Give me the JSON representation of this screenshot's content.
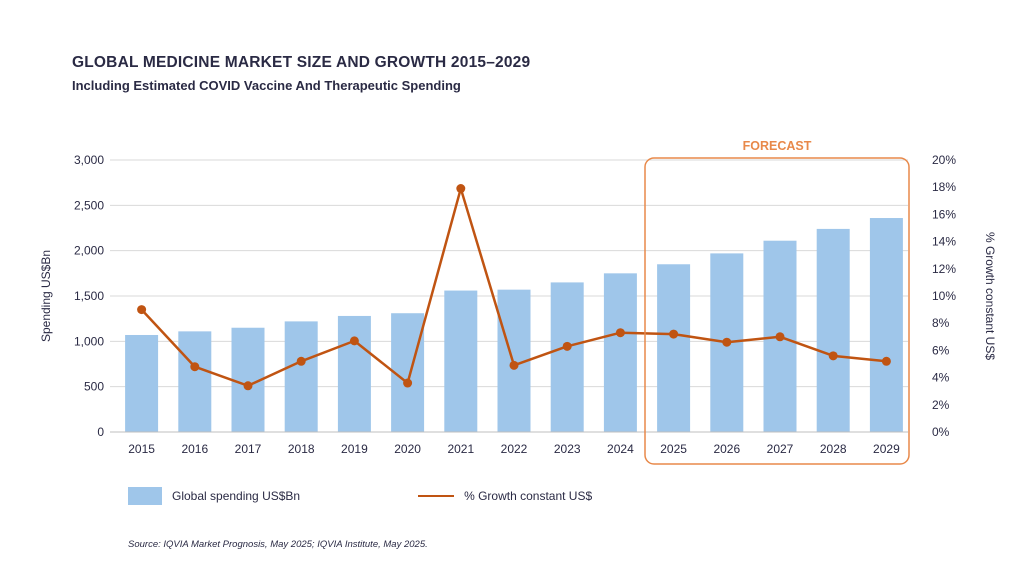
{
  "chart_data": {
    "type": "bar",
    "title": "GLOBAL MEDICINE MARKET SIZE AND GROWTH 2015–2029",
    "subtitle": "Including Estimated COVID Vaccine And Therapeutic Spending",
    "categories": [
      "2015",
      "2016",
      "2017",
      "2018",
      "2019",
      "2020",
      "2021",
      "2022",
      "2023",
      "2024",
      "2025",
      "2026",
      "2027",
      "2028",
      "2029"
    ],
    "series": [
      {
        "name": "Global spending US$Bn",
        "type": "bar",
        "axis": "left",
        "values": [
          1070,
          1110,
          1150,
          1220,
          1280,
          1310,
          1560,
          1570,
          1650,
          1750,
          1850,
          1970,
          2110,
          2240,
          2360
        ]
      },
      {
        "name": "% Growth constant US$",
        "type": "line",
        "axis": "right",
        "values": [
          9.0,
          4.8,
          3.4,
          5.2,
          6.7,
          3.6,
          17.9,
          4.9,
          6.3,
          7.3,
          7.2,
          6.6,
          7.0,
          5.6,
          5.2
        ]
      }
    ],
    "ylabel": "Spending US$Bn",
    "ylim": [
      0,
      3000
    ],
    "yticks": [
      "0",
      "500",
      "1,000",
      "1,500",
      "2,000",
      "2,500",
      "3,000"
    ],
    "y2label": "% Growth constant US$",
    "y2lim": [
      0,
      20
    ],
    "y2ticks": [
      "0%",
      "2%",
      "4%",
      "6%",
      "8%",
      "10%",
      "12%",
      "14%",
      "16%",
      "18%",
      "20%"
    ],
    "forecast_label": "FORECAST",
    "forecast_start_index": 10,
    "grid": true,
    "legend_position": "bottom-left",
    "source": "Source: IQVIA Market Prognosis, May 2025; IQVIA Institute, May 2025.",
    "colors": {
      "bar": "#9fc6ea",
      "line": "#c05412",
      "forecast": "#e8894a",
      "text": "#2a2a44",
      "grid": "#d9d9d9"
    }
  }
}
